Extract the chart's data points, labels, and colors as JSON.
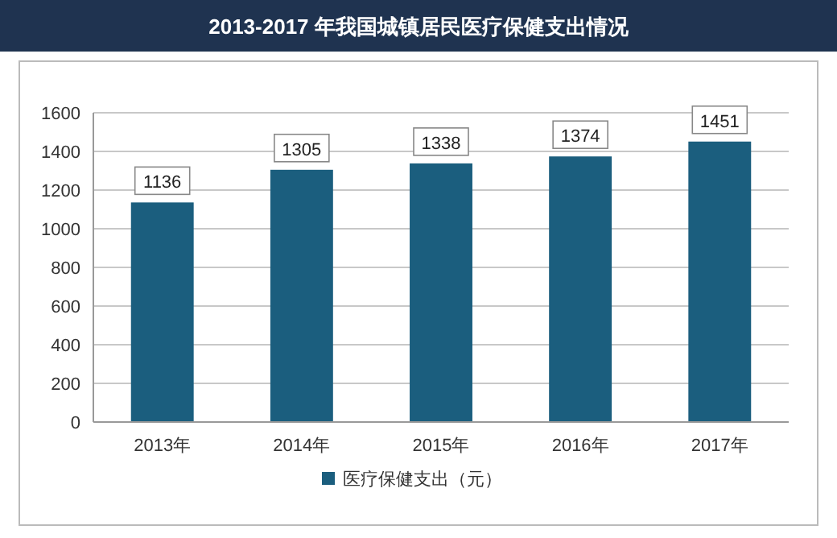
{
  "chart_data": {
    "type": "bar",
    "title": "2013-2017 年我国城镇居民医疗保健支出情况",
    "categories": [
      "2013年",
      "2014年",
      "2015年",
      "2016年",
      "2017年"
    ],
    "series": [
      {
        "name": "医疗保健支出（元）",
        "color": "#1b5e7e",
        "values": [
          1136,
          1305,
          1338,
          1374,
          1451
        ]
      }
    ],
    "ylim": [
      0,
      1600
    ],
    "yticks": [
      0,
      200,
      400,
      600,
      800,
      1000,
      1200,
      1400,
      1600
    ],
    "grid": "y",
    "legend": "bottom",
    "data_labels": true
  }
}
